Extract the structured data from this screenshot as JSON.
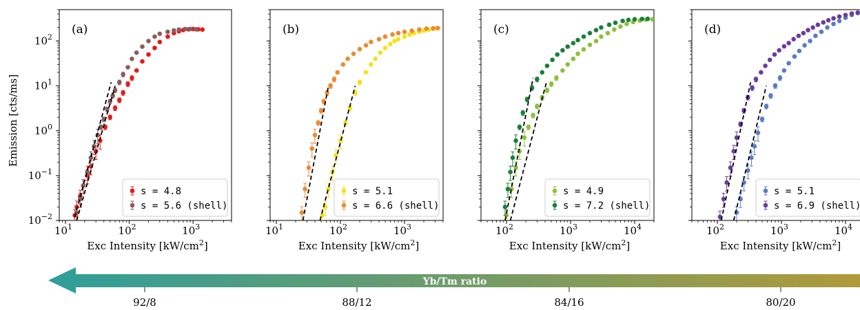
{
  "chart_data": [
    {
      "type": "scatter",
      "panel_label": "(a)",
      "xlabel": "Exc Intensity [kW/cm²]",
      "ylabel": "Emission [cts/ms]",
      "xscale": "log",
      "yscale": "log",
      "xlim": [
        8,
        4000
      ],
      "ylim": [
        0.01,
        500
      ],
      "xticks": [
        {
          "v": 10,
          "label": "10",
          "sup": "1"
        },
        {
          "v": 100,
          "label": "10",
          "sup": "2"
        },
        {
          "v": 1000,
          "label": "10",
          "sup": "3"
        }
      ],
      "legend": "lower-right",
      "series": [
        {
          "name": "s = 4.8",
          "color": "#e41a1c",
          "x": [
            14,
            15,
            17,
            19,
            22,
            25,
            30,
            35,
            42,
            50,
            60,
            70,
            80,
            95,
            110,
            130,
            160,
            200,
            250,
            300,
            400,
            500,
            600,
            700,
            850,
            1000,
            1200,
            1400
          ],
          "y": [
            0.013,
            0.02,
            0.035,
            0.06,
            0.1,
            0.16,
            0.35,
            0.6,
            1.2,
            2.0,
            3.2,
            4.8,
            7,
            11,
            15,
            22,
            35,
            50,
            70,
            95,
            125,
            150,
            165,
            175,
            182,
            185,
            182,
            180
          ]
        },
        {
          "name": "s = 5.6 (shell)",
          "color": "#8b5c5c",
          "x": [
            15,
            17,
            19,
            22,
            25,
            28,
            32,
            36,
            40,
            45,
            50,
            55,
            60,
            70,
            80,
            95,
            110,
            130,
            160,
            200,
            250,
            300,
            400,
            500,
            600,
            750,
            900,
            1100
          ],
          "y": [
            0.015,
            0.03,
            0.06,
            0.12,
            0.25,
            0.45,
            0.8,
            1.2,
            1.8,
            3,
            4.5,
            6,
            8,
            12,
            18,
            26,
            40,
            55,
            75,
            100,
            125,
            145,
            160,
            172,
            180,
            185,
            185,
            182
          ]
        }
      ],
      "fits": [
        {
          "x": [
            14,
            52
          ],
          "y": [
            0.012,
            12
          ]
        },
        {
          "x": [
            15,
            60
          ],
          "y": [
            0.01,
            10
          ]
        }
      ]
    },
    {
      "type": "scatter",
      "panel_label": "(b)",
      "xlabel": "Exc Intensity [kW/cm²]",
      "xscale": "log",
      "yscale": "log",
      "xlim": [
        8,
        4000
      ],
      "ylim": [
        0.01,
        500
      ],
      "xticks": [
        {
          "v": 10,
          "label": "10",
          "sup": "1"
        },
        {
          "v": 100,
          "label": "10",
          "sup": "2"
        },
        {
          "v": 1000,
          "label": "10",
          "sup": "3"
        }
      ],
      "legend": "lower-right",
      "series": [
        {
          "name": "s = 5.1",
          "color": "#f5e11a",
          "x": [
            52,
            58,
            65,
            75,
            85,
            100,
            120,
            140,
            170,
            200,
            250,
            300,
            350,
            420,
            500,
            600,
            700,
            800,
            1000,
            1200,
            1400,
            1700,
            2000,
            2400,
            2800,
            3300
          ],
          "y": [
            0.013,
            0.02,
            0.05,
            0.12,
            0.28,
            0.6,
            1.5,
            3.2,
            7,
            12,
            20,
            30,
            40,
            55,
            70,
            85,
            100,
            110,
            125,
            140,
            150,
            160,
            170,
            180,
            185,
            190
          ]
        },
        {
          "name": "s = 6.6 (shell)",
          "color": "#ee8a2f",
          "x": [
            25,
            28,
            32,
            36,
            40,
            45,
            50,
            55,
            62,
            70,
            80,
            90,
            110,
            130,
            160,
            200,
            250,
            300,
            400,
            500,
            650,
            800,
            1000,
            1300,
            1700,
            2200,
            2800,
            3300
          ],
          "y": [
            0.015,
            0.05,
            0.15,
            0.4,
            0.8,
            1.5,
            2.8,
            4.5,
            7,
            10,
            14,
            20,
            30,
            40,
            52,
            66,
            80,
            95,
            110,
            125,
            140,
            150,
            160,
            170,
            180,
            188,
            192,
            195
          ]
        }
      ],
      "fits": [
        {
          "x": [
            26,
            65
          ],
          "y": [
            0.01,
            10
          ]
        },
        {
          "x": [
            48,
            170
          ],
          "y": [
            0.01,
            10
          ]
        }
      ]
    },
    {
      "type": "scatter",
      "panel_label": "(c)",
      "xlabel": "Exc Intensity [kW/cm²]",
      "xscale": "log",
      "yscale": "log",
      "xlim": [
        40,
        20000
      ],
      "ylim": [
        0.01,
        500
      ],
      "xticks": [
        {
          "v": 100,
          "label": "10",
          "sup": "2"
        },
        {
          "v": 1000,
          "label": "10",
          "sup": "3"
        },
        {
          "v": 10000,
          "label": "10",
          "sup": "4"
        }
      ],
      "legend": "lower-right",
      "series": [
        {
          "name": "s = 4.9",
          "color": "#8fbf3a",
          "x": [
            100,
            120,
            140,
            160,
            190,
            220,
            260,
            300,
            360,
            430,
            500,
            600,
            750,
            900,
            1100,
            1300,
            1600,
            2000,
            2500,
            3000,
            3800,
            4800,
            6000,
            7500,
            9500,
            12000,
            15000,
            19000
          ],
          "y": [
            0.013,
            0.05,
            0.15,
            0.35,
            0.7,
            1.2,
            2.2,
            3.5,
            5.5,
            8,
            11,
            15,
            22,
            30,
            40,
            52,
            65,
            82,
            100,
            125,
            150,
            180,
            210,
            240,
            265,
            285,
            300,
            305
          ]
        },
        {
          "name": "s = 7.2 (shell)",
          "color": "#1a7f3a",
          "x": [
            95,
            105,
            115,
            125,
            140,
            160,
            180,
            210,
            250,
            300,
            360,
            430,
            520,
            620,
            750,
            900,
            1100,
            1300,
            1600,
            2000,
            2500,
            3000,
            4000,
            5000,
            6500,
            8000,
            10000,
            13000,
            16000
          ],
          "y": [
            0.02,
            0.05,
            0.12,
            0.25,
            0.6,
            1.2,
            2.5,
            5,
            9,
            14,
            20,
            28,
            38,
            50,
            62,
            75,
            90,
            105,
            125,
            150,
            175,
            200,
            230,
            255,
            280,
            295,
            305,
            310,
            312
          ]
        }
      ],
      "fits": [
        {
          "x": [
            95,
            260
          ],
          "y": [
            0.01,
            15
          ]
        },
        {
          "x": [
            115,
            420
          ],
          "y": [
            0.01,
            12
          ]
        }
      ]
    },
    {
      "type": "scatter",
      "panel_label": "(d)",
      "xlabel": "Exc Intensity [kW/cm²]",
      "xscale": "log",
      "yscale": "log",
      "xlim": [
        40,
        20000
      ],
      "ylim": [
        0.01,
        500
      ],
      "xticks": [
        {
          "v": 100,
          "label": "10",
          "sup": "2"
        },
        {
          "v": 1000,
          "label": "10",
          "sup": "3"
        },
        {
          "v": 10000,
          "label": "10",
          "sup": "4"
        }
      ],
      "legend": "lower-right",
      "series": [
        {
          "name": "s = 5.1",
          "color": "#5b7cc4",
          "x": [
            200,
            230,
            260,
            300,
            340,
            380,
            430,
            500,
            580,
            680,
            800,
            950,
            1100,
            1300,
            1600,
            1900,
            2300,
            2800,
            3400,
            4200,
            5200,
            6500,
            8000,
            10000,
            12500,
            15500,
            19000
          ],
          "y": [
            0.015,
            0.03,
            0.07,
            0.13,
            0.25,
            0.45,
            0.9,
            1.8,
            3.5,
            6,
            10,
            15,
            22,
            32,
            45,
            60,
            80,
            100,
            130,
            160,
            200,
            240,
            280,
            330,
            380,
            420,
            460
          ]
        },
        {
          "name": "s = 6.9 (shell)",
          "color": "#6a3d9a",
          "x": [
            110,
            125,
            140,
            160,
            180,
            200,
            230,
            260,
            300,
            350,
            400,
            480,
            560,
            660,
            780,
            920,
            1100,
            1300,
            1550,
            1850,
            2200,
            2600,
            3100,
            3700,
            4500,
            5400,
            6500,
            8000,
            10000,
            12500,
            15500,
            19000
          ],
          "y": [
            0.012,
            0.03,
            0.07,
            0.15,
            0.35,
            0.7,
            1.4,
            2.8,
            5.5,
            9,
            14,
            20,
            28,
            38,
            50,
            62,
            76,
            90,
            110,
            130,
            150,
            175,
            200,
            230,
            260,
            290,
            320,
            350,
            380,
            410,
            430,
            445
          ]
        }
      ],
      "fits": [
        {
          "x": [
            115,
            330
          ],
          "y": [
            0.01,
            12
          ]
        },
        {
          "x": [
            180,
            580
          ],
          "y": [
            0.01,
            10
          ]
        }
      ]
    }
  ],
  "ratio_bar": {
    "title": "Yb/Tm ratio",
    "color_left": "#2e9e9a",
    "color_right": "#b09a3a",
    "labels": [
      "92/8",
      "88/12",
      "84/16",
      "80/20"
    ]
  },
  "ytick_labels": [
    {
      "base": "10",
      "sup": "2"
    },
    {
      "base": "10",
      "sup": "1"
    },
    {
      "base": "10",
      "sup": "0"
    },
    {
      "base": "10",
      "sup": "−1"
    },
    {
      "base": "10",
      "sup": "−2"
    }
  ]
}
